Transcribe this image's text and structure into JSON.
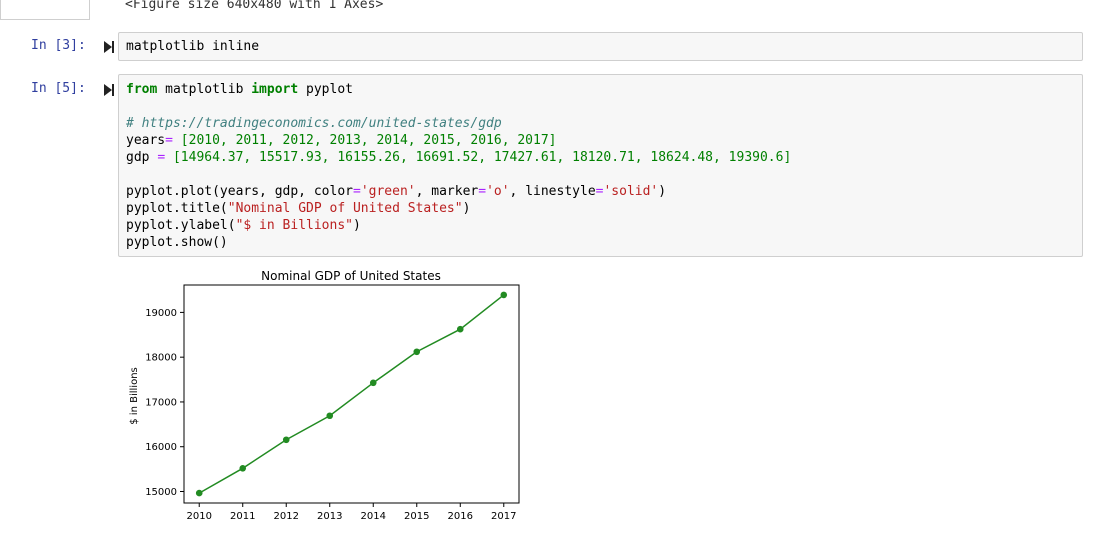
{
  "previous_output": "<Figure size 640x480 with 1 Axes>",
  "cell3": {
    "prompt": "In [3]:",
    "code": "matplotlib inline"
  },
  "cell5": {
    "prompt": "In [5]:",
    "line1_from": "from",
    "line1_mod": " matplotlib ",
    "line1_import": "import",
    "line1_rest": " pyplot",
    "comment": "# https://tradingeconomics.com/united-states/gdp",
    "years_name": "years",
    "years_eq": "=",
    "years_vals": " [2010, 2011, 2012, 2013, 2014, 2015, 2016, 2017]",
    "gdp_name": "gdp ",
    "gdp_eq": "=",
    "gdp_vals": " [14964.37, 15517.93, 16155.26, 16691.52, 17427.61, 18120.71, 18624.48, 19390.6]",
    "plot_a": "pyplot.plot(years, gdp, color",
    "plot_eq1": "=",
    "plot_s1": "'green'",
    "plot_b": ", marker",
    "plot_eq2": "=",
    "plot_s2": "'o'",
    "plot_c": ", linestyle",
    "plot_eq3": "=",
    "plot_s3": "'solid'",
    "plot_d": ")",
    "title_a": "pyplot.title(",
    "title_s": "\"Nominal GDP of United States\"",
    "title_b": ")",
    "ylabel_a": "pyplot.ylabel(",
    "ylabel_s": "\"$ in Billions\"",
    "ylabel_b": ")",
    "show": "pyplot.show()"
  },
  "chart_data": {
    "type": "line",
    "title": "Nominal GDP of United States",
    "xlabel": "",
    "ylabel": "$ in Billions",
    "x": [
      2010,
      2011,
      2012,
      2013,
      2014,
      2015,
      2016,
      2017
    ],
    "series": [
      {
        "values": [
          14964.37,
          15517.93,
          16155.26,
          16691.52,
          17427.61,
          18120.71,
          18624.48,
          19390.6
        ],
        "color": "#228b22",
        "marker": "o"
      }
    ],
    "xticks": [
      "2010",
      "2011",
      "2012",
      "2013",
      "2014",
      "2015",
      "2016",
      "2017"
    ],
    "yticks": [
      15000,
      16000,
      17000,
      18000,
      19000
    ],
    "xlim": [
      2009.65,
      2017.35
    ],
    "ylim": [
      14743,
      19612
    ],
    "grid": false
  },
  "colors": {
    "prompt": "#303f9f",
    "cell_bg": "#f7f7f7",
    "line": "#228b22"
  }
}
